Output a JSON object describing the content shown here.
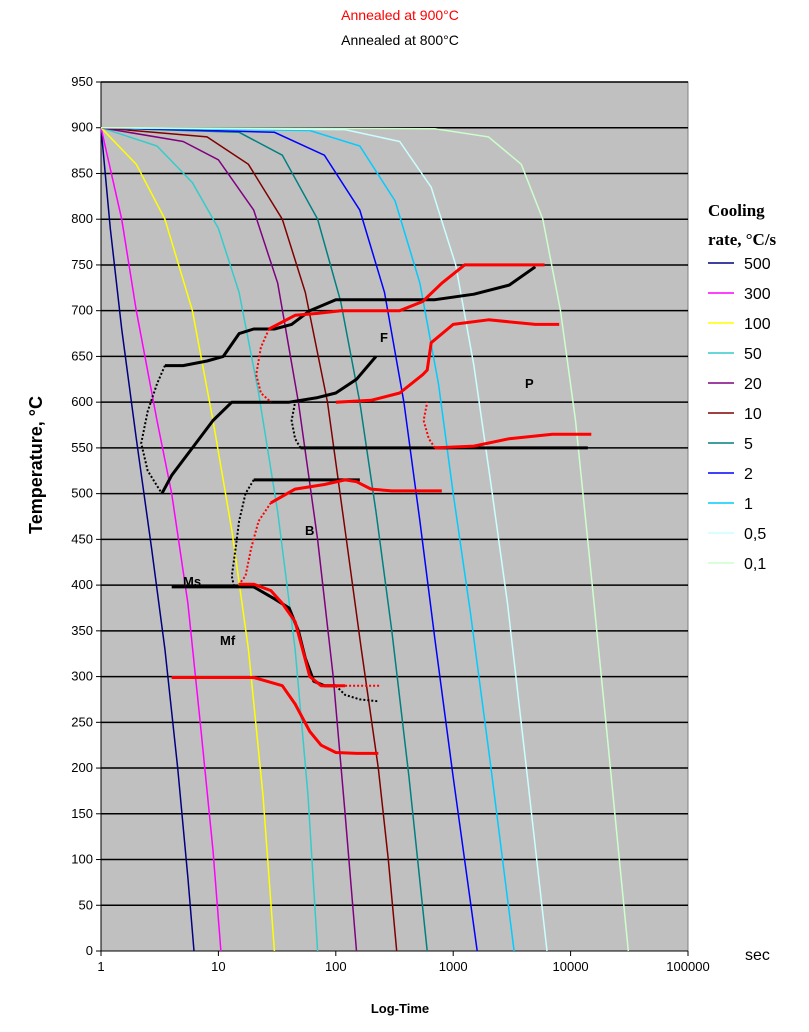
{
  "chart_data": {
    "type": "line",
    "title_lines": [
      {
        "text": "Annealed at 900°C",
        "color": "#ff0000"
      },
      {
        "text": "Annealed at 800°C",
        "color": "#000000"
      }
    ],
    "ylabel": "Temperature, °C",
    "xlabel": "Log-Time",
    "x_unit": "sec",
    "x_scale": "log",
    "xlim": [
      1,
      100000
    ],
    "ylim": [
      0,
      950
    ],
    "x_ticks": [
      "1",
      "10",
      "100",
      "1000",
      "10000",
      "100000"
    ],
    "y_ticks": [
      "0",
      "50",
      "100",
      "150",
      "200",
      "250",
      "300",
      "350",
      "400",
      "450",
      "500",
      "550",
      "600",
      "650",
      "700",
      "750",
      "800",
      "850",
      "900",
      "950"
    ],
    "grid": "horizontal",
    "plot_background": "#c0c0c0",
    "legend": {
      "title_line1": "Cooling",
      "title_line2": "rate, °C/s",
      "position": "right"
    },
    "series": [
      {
        "name": "500",
        "color": "#000080",
        "points": [
          [
            1,
            900
          ],
          [
            1.2,
            790
          ],
          [
            1.5,
            680
          ],
          [
            2,
            560
          ],
          [
            2.7,
            440
          ],
          [
            3.5,
            330
          ],
          [
            4.5,
            200
          ],
          [
            5.5,
            80
          ],
          [
            6.2,
            0
          ]
        ]
      },
      {
        "name": "300",
        "color": "#ff00ff",
        "points": [
          [
            1,
            900
          ],
          [
            1.5,
            800
          ],
          [
            2,
            700
          ],
          [
            3,
            580
          ],
          [
            4,
            500
          ],
          [
            5.5,
            380
          ],
          [
            7,
            250
          ],
          [
            9,
            110
          ],
          [
            10.5,
            0
          ]
        ]
      },
      {
        "name": "100",
        "color": "#ffff00",
        "points": [
          [
            1,
            900
          ],
          [
            2,
            860
          ],
          [
            3.5,
            800
          ],
          [
            6,
            700
          ],
          [
            9,
            580
          ],
          [
            13,
            460
          ],
          [
            18,
            330
          ],
          [
            24,
            170
          ],
          [
            30,
            0
          ]
        ]
      },
      {
        "name": "50",
        "color": "#33cccc",
        "points": [
          [
            1,
            900
          ],
          [
            3,
            880
          ],
          [
            6,
            840
          ],
          [
            10,
            790
          ],
          [
            15,
            720
          ],
          [
            22,
            610
          ],
          [
            32,
            480
          ],
          [
            45,
            330
          ],
          [
            58,
            170
          ],
          [
            70,
            0
          ]
        ]
      },
      {
        "name": "20",
        "color": "#800080",
        "points": [
          [
            1,
            900
          ],
          [
            5,
            885
          ],
          [
            10,
            865
          ],
          [
            20,
            810
          ],
          [
            32,
            730
          ],
          [
            48,
            600
          ],
          [
            70,
            450
          ],
          [
            95,
            300
          ],
          [
            120,
            150
          ],
          [
            150,
            0
          ]
        ]
      },
      {
        "name": "10",
        "color": "#800000",
        "points": [
          [
            1,
            900
          ],
          [
            8,
            890
          ],
          [
            18,
            860
          ],
          [
            35,
            800
          ],
          [
            55,
            720
          ],
          [
            85,
            600
          ],
          [
            120,
            460
          ],
          [
            165,
            330
          ],
          [
            230,
            200
          ],
          [
            280,
            100
          ],
          [
            330,
            0
          ]
        ]
      },
      {
        "name": "5",
        "color": "#008080",
        "points": [
          [
            1,
            900
          ],
          [
            15,
            895
          ],
          [
            35,
            870
          ],
          [
            70,
            800
          ],
          [
            110,
            710
          ],
          [
            160,
            600
          ],
          [
            220,
            480
          ],
          [
            300,
            350
          ],
          [
            420,
            190
          ],
          [
            600,
            0
          ]
        ]
      },
      {
        "name": "2",
        "color": "#0000ff",
        "points": [
          [
            1,
            900
          ],
          [
            30,
            895
          ],
          [
            80,
            870
          ],
          [
            160,
            810
          ],
          [
            260,
            720
          ],
          [
            380,
            600
          ],
          [
            520,
            470
          ],
          [
            700,
            340
          ],
          [
            1000,
            190
          ],
          [
            1600,
            0
          ]
        ]
      },
      {
        "name": "1",
        "color": "#00ccff",
        "points": [
          [
            1,
            900
          ],
          [
            60,
            897
          ],
          [
            160,
            880
          ],
          [
            320,
            820
          ],
          [
            520,
            730
          ],
          [
            750,
            620
          ],
          [
            1000,
            500
          ],
          [
            1400,
            370
          ],
          [
            2100,
            200
          ],
          [
            3300,
            0
          ]
        ]
      },
      {
        "name": "0,5",
        "color": "#ccffff",
        "points": [
          [
            1,
            900
          ],
          [
            120,
            898
          ],
          [
            350,
            885
          ],
          [
            650,
            835
          ],
          [
            1050,
            750
          ],
          [
            1500,
            640
          ],
          [
            2100,
            510
          ],
          [
            2900,
            380
          ],
          [
            4200,
            200
          ],
          [
            6300,
            0
          ]
        ]
      },
      {
        "name": "0,1",
        "color": "#ccffcc",
        "points": [
          [
            1,
            900
          ],
          [
            700,
            899
          ],
          [
            2000,
            890
          ],
          [
            3800,
            860
          ],
          [
            5800,
            800
          ],
          [
            8200,
            700
          ],
          [
            11000,
            580
          ],
          [
            14500,
            430
          ],
          [
            20000,
            250
          ],
          [
            31000,
            0
          ]
        ]
      }
    ],
    "transformation_curves": {
      "annealed_900": [
        {
          "points": [
            [
              27,
              680
            ],
            [
              45,
              695
            ],
            [
              70,
              697
            ],
            [
              110,
              700
            ],
            [
              200,
              700
            ],
            [
              350,
              700
            ],
            [
              550,
              710
            ],
            [
              800,
              730
            ],
            [
              1250,
              750
            ],
            [
              6000,
              750
            ]
          ]
        },
        {
          "points": [
            [
              100,
              600
            ],
            [
              200,
              602
            ],
            [
              350,
              610
            ],
            [
              550,
              630
            ],
            [
              600,
              635
            ],
            [
              650,
              665
            ],
            [
              1000,
              685
            ],
            [
              2000,
              690
            ],
            [
              5000,
              685
            ],
            [
              8000,
              685
            ]
          ]
        },
        {
          "points": [
            [
              700,
              550
            ],
            [
              1500,
              552
            ],
            [
              3000,
              560
            ],
            [
              7000,
              565
            ],
            [
              15000,
              565
            ]
          ]
        },
        {
          "points": [
            [
              28,
              490
            ],
            [
              45,
              505
            ],
            [
              80,
              510
            ],
            [
              120,
              515
            ],
            [
              150,
              513
            ],
            [
              200,
              505
            ],
            [
              300,
              503
            ],
            [
              500,
              503
            ],
            [
              800,
              503
            ]
          ]
        },
        {
          "points": [
            [
              15,
              401
            ],
            [
              20,
              401
            ],
            [
              28,
              394
            ],
            [
              35,
              380
            ],
            [
              45,
              360
            ],
            [
              52,
              330
            ],
            [
              60,
              300
            ],
            [
              75,
              290
            ],
            [
              120,
              290
            ]
          ]
        },
        {
          "points": [
            [
              4,
              299
            ],
            [
              10,
              299
            ],
            [
              20,
              299
            ],
            [
              35,
              290
            ],
            [
              45,
              270
            ],
            [
              60,
              240
            ],
            [
              75,
              225
            ],
            [
              100,
              217
            ],
            [
              150,
              216
            ],
            [
              230,
              216
            ]
          ]
        },
        {
          "dotted": true,
          "points": [
            [
              27,
              680
            ],
            [
              23,
              660
            ],
            [
              21,
              630
            ],
            [
              23,
              610
            ],
            [
              28,
              600
            ]
          ]
        },
        {
          "dotted": true,
          "points": [
            [
              700,
              550
            ],
            [
              620,
              560
            ],
            [
              560,
              580
            ],
            [
              600,
              600
            ]
          ]
        },
        {
          "dotted": true,
          "points": [
            [
              28,
              490
            ],
            [
              22,
              470
            ],
            [
              19,
              440
            ],
            [
              17,
              410
            ],
            [
              15,
              401
            ]
          ]
        },
        {
          "dotted": true,
          "points": [
            [
              120,
              290
            ],
            [
              160,
              290
            ],
            [
              200,
              290
            ],
            [
              240,
              290
            ]
          ]
        }
      ],
      "annealed_800": [
        {
          "points": [
            [
              3.5,
              640
            ],
            [
              5,
              640
            ],
            [
              8,
              645
            ],
            [
              11,
              650
            ],
            [
              15,
              675
            ],
            [
              20,
              680
            ],
            [
              30,
              680
            ],
            [
              42,
              685
            ],
            [
              60,
              700
            ],
            [
              100,
              712
            ],
            [
              250,
              712
            ],
            [
              700,
              712
            ],
            [
              1500,
              718
            ],
            [
              3000,
              728
            ],
            [
              5000,
              748
            ]
          ]
        },
        {
          "points": [
            [
              3.3,
              500
            ],
            [
              4,
              520
            ],
            [
              6,
              550
            ],
            [
              9,
              580
            ],
            [
              13,
              600
            ],
            [
              20,
              600
            ],
            [
              40,
              600
            ],
            [
              70,
              605
            ],
            [
              100,
              610
            ],
            [
              150,
              625
            ],
            [
              220,
              650
            ]
          ]
        },
        {
          "points": [
            [
              20,
              515
            ],
            [
              60,
              515
            ],
            [
              100,
              515
            ],
            [
              160,
              515
            ]
          ]
        },
        {
          "points": [
            [
              4,
              398
            ],
            [
              10,
              398
            ],
            [
              20,
              398
            ],
            [
              30,
              385
            ],
            [
              40,
              375
            ],
            [
              48,
              350
            ],
            [
              55,
              320
            ],
            [
              65,
              295
            ],
            [
              80,
              290
            ],
            [
              100,
              290
            ]
          ]
        },
        {
          "points": [
            [
              50,
              550
            ],
            [
              100,
              550
            ],
            [
              300,
              550
            ],
            [
              1000,
              550
            ],
            [
              5000,
              550
            ],
            [
              14000,
              550
            ]
          ]
        },
        {
          "dotted": true,
          "points": [
            [
              3.5,
              640
            ],
            [
              3,
              620
            ],
            [
              2.5,
              590
            ],
            [
              2.2,
              555
            ],
            [
              2.5,
              525
            ],
            [
              3.3,
              500
            ]
          ]
        },
        {
          "dotted": true,
          "points": [
            [
              20,
              515
            ],
            [
              17,
              500
            ],
            [
              15,
              470
            ],
            [
              14,
              440
            ],
            [
              13,
              410
            ],
            [
              13.5,
              400
            ]
          ]
        },
        {
          "dotted": true,
          "points": [
            [
              50,
              550
            ],
            [
              45,
              560
            ],
            [
              42,
              580
            ],
            [
              45,
              600
            ]
          ]
        },
        {
          "dotted": true,
          "points": [
            [
              100,
              290
            ],
            [
              120,
              280
            ],
            [
              160,
              275
            ],
            [
              230,
              273
            ]
          ]
        }
      ]
    },
    "region_labels": [
      "F",
      "P",
      "B",
      "Ms",
      "Mf"
    ]
  }
}
